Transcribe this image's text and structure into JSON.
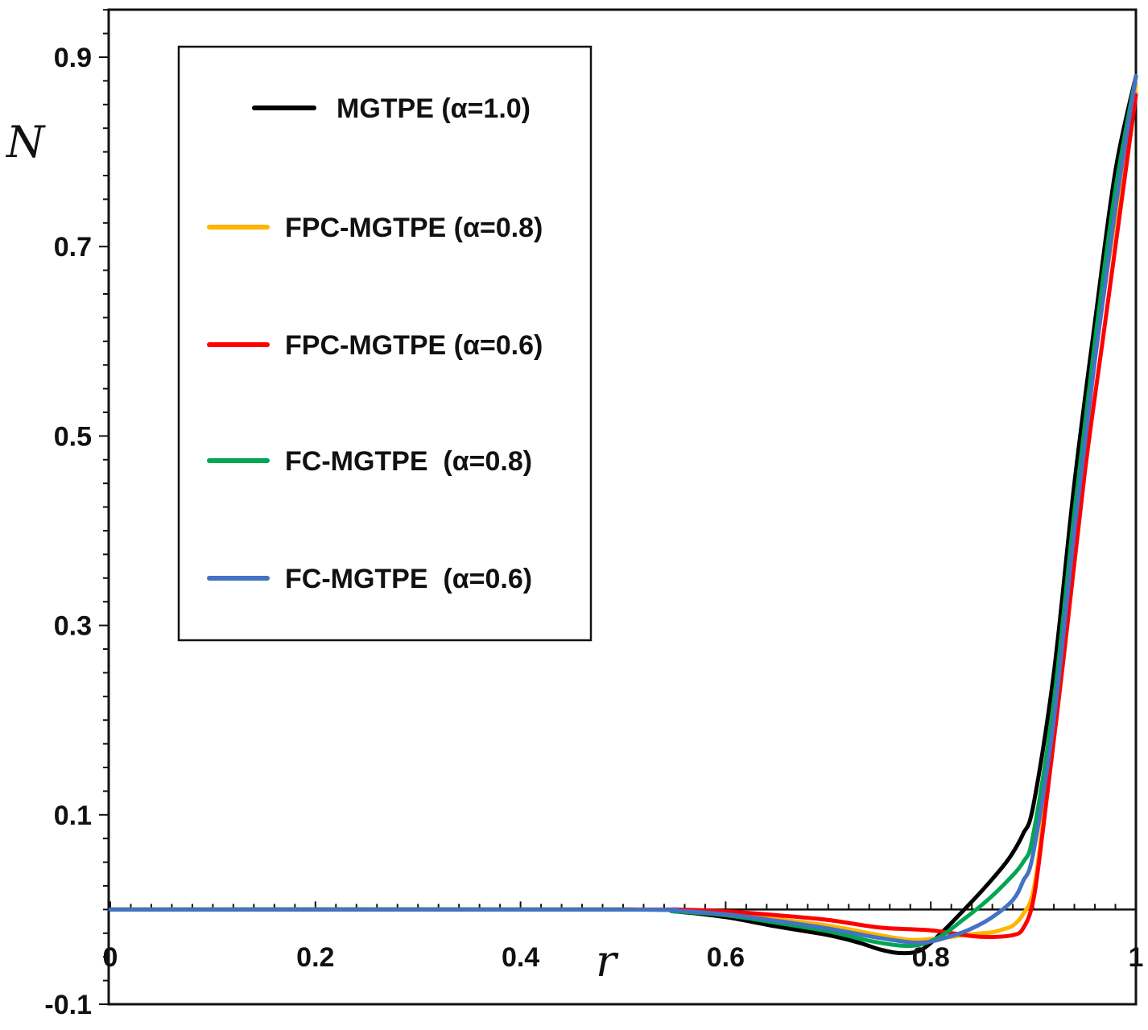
{
  "chart_data": {
    "type": "line",
    "title": "",
    "xlabel": "r",
    "ylabel": "N",
    "xlim": [
      0,
      1
    ],
    "ylim": [
      -0.1,
      0.95
    ],
    "x_ticks": [
      0,
      0.2,
      0.4,
      0.6,
      0.8,
      1
    ],
    "x_tick_labels": [
      "0",
      "0.2",
      "0.4",
      "0.6",
      "0.8",
      "1"
    ],
    "y_ticks": [
      -0.1,
      0.1,
      0.3,
      0.5,
      0.7,
      0.9
    ],
    "y_tick_labels": [
      "-0.1",
      "0.1",
      "0.3",
      "0.5",
      "0.7",
      "0.9"
    ],
    "grid": false,
    "legend_position": "top-left",
    "series": [
      {
        "name": "MGTPE (α=1.0)",
        "color": "#000000",
        "x": [
          0,
          0.5,
          0.55,
          0.6,
          0.65,
          0.7,
          0.73,
          0.75,
          0.77,
          0.79,
          0.81,
          0.83,
          0.85,
          0.87,
          0.88,
          0.89,
          0.9,
          0.92,
          0.94,
          0.96,
          0.98,
          1.0
        ],
        "y": [
          0,
          0,
          -0.002,
          -0.008,
          -0.018,
          -0.027,
          -0.035,
          -0.042,
          -0.046,
          -0.043,
          -0.025,
          -0.003,
          0.02,
          0.045,
          0.06,
          0.08,
          0.11,
          0.25,
          0.45,
          0.62,
          0.78,
          0.88
        ]
      },
      {
        "name": "FPC-MGTPE (α=0.8)",
        "color": "#FFB400",
        "x": [
          0,
          0.5,
          0.55,
          0.6,
          0.65,
          0.7,
          0.75,
          0.78,
          0.81,
          0.84,
          0.86,
          0.87,
          0.88,
          0.89,
          0.9,
          0.91,
          0.93,
          0.95,
          0.97,
          1.0
        ],
        "y": [
          0,
          0,
          -0.001,
          -0.004,
          -0.01,
          -0.017,
          -0.027,
          -0.032,
          -0.03,
          -0.026,
          -0.024,
          -0.021,
          -0.017,
          -0.005,
          0.02,
          0.1,
          0.3,
          0.5,
          0.66,
          0.87
        ]
      },
      {
        "name": "FPC-MGTPE (α=0.6)",
        "color": "#FF0000",
        "x": [
          0,
          0.5,
          0.55,
          0.6,
          0.65,
          0.7,
          0.75,
          0.8,
          0.84,
          0.86,
          0.88,
          0.89,
          0.9,
          0.91,
          0.93,
          0.95,
          0.97,
          1.0
        ],
        "y": [
          0,
          0,
          0,
          -0.002,
          -0.006,
          -0.011,
          -0.019,
          -0.022,
          -0.028,
          -0.029,
          -0.027,
          -0.02,
          0.01,
          0.09,
          0.27,
          0.46,
          0.62,
          0.86
        ]
      },
      {
        "name": "FC-MGTPE  (α=0.8)",
        "color": "#00A651",
        "x": [
          0,
          0.5,
          0.55,
          0.6,
          0.65,
          0.7,
          0.74,
          0.77,
          0.79,
          0.81,
          0.83,
          0.85,
          0.87,
          0.89,
          0.9,
          0.92,
          0.94,
          0.96,
          0.98,
          1.0
        ],
        "y": [
          0,
          0,
          -0.002,
          -0.006,
          -0.014,
          -0.023,
          -0.033,
          -0.038,
          -0.037,
          -0.028,
          -0.012,
          0.005,
          0.025,
          0.05,
          0.08,
          0.22,
          0.42,
          0.6,
          0.76,
          0.88
        ]
      },
      {
        "name": "FC-MGTPE  (α=0.6)",
        "color": "#4472C4",
        "x": [
          0,
          0.5,
          0.55,
          0.6,
          0.65,
          0.7,
          0.75,
          0.79,
          0.82,
          0.84,
          0.86,
          0.88,
          0.89,
          0.9,
          0.92,
          0.94,
          0.96,
          0.98,
          1.0
        ],
        "y": [
          0,
          0,
          -0.001,
          -0.005,
          -0.012,
          -0.02,
          -0.03,
          -0.035,
          -0.028,
          -0.02,
          -0.008,
          0.01,
          0.03,
          0.06,
          0.2,
          0.4,
          0.58,
          0.74,
          0.88
        ]
      }
    ]
  }
}
